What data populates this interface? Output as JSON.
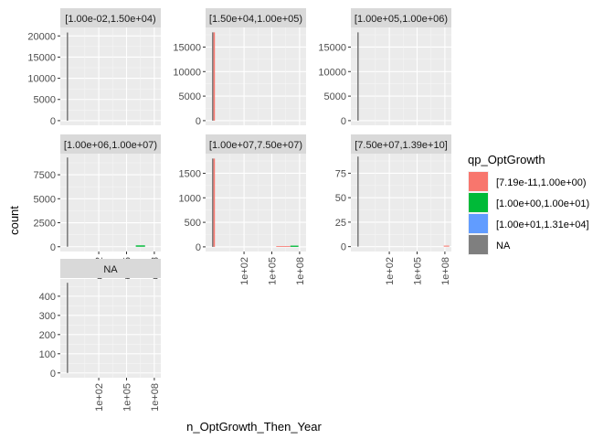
{
  "chart_data": {
    "type": "bar",
    "facet_by": "n_OptGrowth_Then_Year",
    "xlabel": "n_OptGrowth_Then_Year",
    "ylabel": "count",
    "x_scale": "log10",
    "x_tick_labels": [
      "1e+02",
      "1e+05",
      "1e+08"
    ],
    "x_tick_values": [
      100,
      100000,
      100000000
    ],
    "legend": {
      "title": "qp_OptGrowth",
      "placement": "right",
      "items": [
        {
          "label": "[7.19e-11,1.00e+00)",
          "color": "#F8766D"
        },
        {
          "label": "[1.00e+00,1.00e+01)",
          "color": "#00BA38"
        },
        {
          "label": "[1.00e+01,1.31e+04]",
          "color": "#619CFF"
        },
        {
          "label": "NA",
          "color": "#7F7F7F"
        }
      ]
    },
    "panels": [
      {
        "strip": "[1.00e-02,1.50e+04)",
        "ylim": [
          -1100,
          22000
        ],
        "y_ticks": [
          0,
          5000,
          10000,
          15000,
          20000
        ],
        "y_tick_labels": [
          "0",
          "5000",
          "10000",
          "15000",
          "20000"
        ],
        "bars": [
          {
            "x": 0.012,
            "count": 20800,
            "group": "NA"
          }
        ]
      },
      {
        "strip": "[1.50e+04,1.00e+05)",
        "ylim": [
          -950,
          19000
        ],
        "y_ticks": [
          0,
          5000,
          10000,
          15000
        ],
        "y_tick_labels": [
          "0",
          "5000",
          "10000",
          "15000"
        ],
        "bars": [
          {
            "x": 0.012,
            "count": 18000,
            "group": "NA"
          },
          {
            "x": 0.05,
            "count": 18000,
            "group": "[7.19e-11,1.00e+00)"
          }
        ]
      },
      {
        "strip": "[1.00e+05,1.00e+06)",
        "ylim": [
          -950,
          19000
        ],
        "y_ticks": [
          0,
          5000,
          10000,
          15000
        ],
        "y_tick_labels": [
          "0",
          "5000",
          "10000",
          "15000"
        ],
        "bars": [
          {
            "x": 0.012,
            "count": 18000,
            "group": "NA"
          }
        ]
      },
      {
        "strip": "[1.00e+06,1.00e+07)",
        "ylim": [
          -500,
          9700
        ],
        "y_ticks": [
          0,
          2500,
          5000,
          7500
        ],
        "y_tick_labels": [
          "0",
          "2500",
          "5000",
          "7500"
        ],
        "bars": [
          {
            "x": 0.012,
            "count": 9300,
            "group": "NA"
          },
          {
            "x0": 1000000,
            "x1": 10000000,
            "count": 140,
            "group": "[1.00e+00,1.00e+01)"
          }
        ]
      },
      {
        "strip": "[1.00e+07,7.50e+07)",
        "ylim": [
          -95,
          1900
        ],
        "y_ticks": [
          0,
          500,
          1000,
          1500
        ],
        "y_tick_labels": [
          "0",
          "500",
          "1000",
          "1500"
        ],
        "bars": [
          {
            "x": 0.012,
            "count": 1800,
            "group": "NA"
          },
          {
            "x": 0.05,
            "count": 1800,
            "group": "[7.19e-11,1.00e+00)"
          },
          {
            "x0": 10000000,
            "x1": 75000000,
            "count": 25,
            "group": "[1.00e+00,1.00e+01)"
          },
          {
            "x0": 300000,
            "x1": 10000000,
            "count": 12,
            "group": "[7.19e-11,1.00e+00)"
          }
        ]
      },
      {
        "strip": "[7.50e+07,1.39e+10]",
        "ylim": [
          -5,
          95
        ],
        "y_ticks": [
          0,
          25,
          50,
          75
        ],
        "y_tick_labels": [
          "0",
          "25",
          "50",
          "75"
        ],
        "bars": [
          {
            "x": 0.012,
            "count": 92,
            "group": "NA"
          },
          {
            "x0": 75000000,
            "x1": 300000000,
            "count": 1,
            "group": "[7.19e-11,1.00e+00)"
          }
        ]
      },
      {
        "strip": "NA",
        "ylim": [
          -25,
          490
        ],
        "y_ticks": [
          0,
          100,
          200,
          300,
          400
        ],
        "y_tick_labels": [
          "0",
          "100",
          "200",
          "300",
          "400"
        ],
        "bars": [
          {
            "x": 0.012,
            "count": 470,
            "group": "NA"
          }
        ]
      }
    ]
  }
}
